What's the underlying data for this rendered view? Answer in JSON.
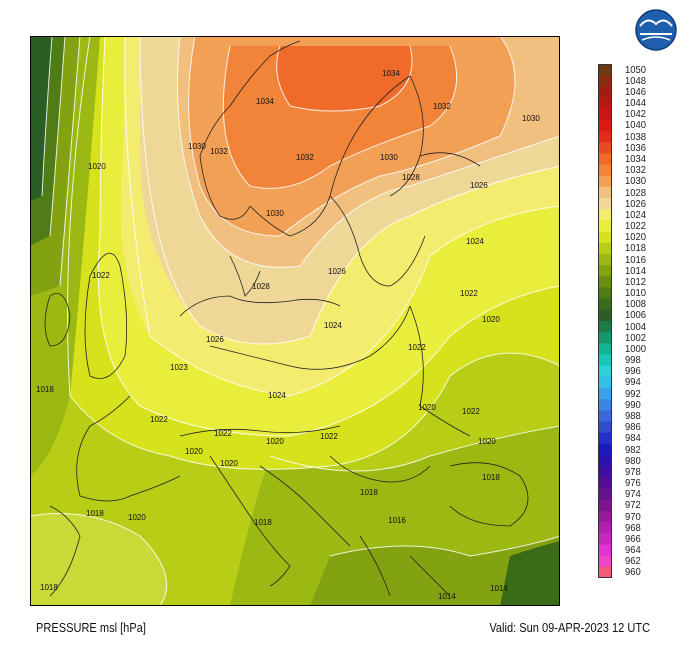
{
  "title": "PRESSURE msl [hPa]",
  "valid": "Valid: Sun 09-APR-2023 12 UTC",
  "legend": {
    "unit": "hPa",
    "levels": [
      "1050",
      "1048",
      "1046",
      "1044",
      "1042",
      "1040",
      "1038",
      "1036",
      "1034",
      "1032",
      "1030",
      "1028",
      "1026",
      "1024",
      "1022",
      "1020",
      "1018",
      "1016",
      "1014",
      "1012",
      "1010",
      "1008",
      "1006",
      "1004",
      "1002",
      "1000",
      "998",
      "996",
      "994",
      "992",
      "990",
      "988",
      "986",
      "984",
      "982",
      "980",
      "978",
      "976",
      "974",
      "972",
      "970",
      "968",
      "966",
      "964",
      "962",
      "960"
    ],
    "colors": [
      "#6b3a12",
      "#8a2b10",
      "#a01e10",
      "#b81810",
      "#cc1412",
      "#dd1a15",
      "#e52a1c",
      "#ea4a22",
      "#f06a2a",
      "#f2843a",
      "#f3a057",
      "#f1bf7e",
      "#efd897",
      "#f3ec6e",
      "#e9ee3d",
      "#d5e21c",
      "#b8cd16",
      "#9cb812",
      "#83a212",
      "#6a8d14",
      "#4f7c17",
      "#3a6b19",
      "#2a5e25",
      "#1f7a49",
      "#17966d",
      "#12b591",
      "#18c7b7",
      "#2bd1d8",
      "#35bfe6",
      "#3aa3e8",
      "#3a86e2",
      "#3a68d6",
      "#2f4ccc",
      "#2230c8",
      "#1a1ac0",
      "#2a12b0",
      "#3e0fa0",
      "#520f95",
      "#67118c",
      "#7e1490",
      "#961a9c",
      "#b01fae",
      "#c828c0",
      "#de35d0",
      "#ef45c8",
      "#f45a7a"
    ]
  },
  "isobars": [
    {
      "label": "1034"
    },
    {
      "label": "1034"
    },
    {
      "label": "1032"
    },
    {
      "label": "1032"
    },
    {
      "label": "1032"
    },
    {
      "label": "1030"
    },
    {
      "label": "1030"
    },
    {
      "label": "1030"
    },
    {
      "label": "1030"
    },
    {
      "label": "1028"
    },
    {
      "label": "1028"
    },
    {
      "label": "1026"
    },
    {
      "label": "1026"
    },
    {
      "label": "1026"
    },
    {
      "label": "1024"
    },
    {
      "label": "1024"
    },
    {
      "label": "1024"
    },
    {
      "label": "1023"
    },
    {
      "label": "1022"
    },
    {
      "label": "1022"
    },
    {
      "label": "1022"
    },
    {
      "label": "1022"
    },
    {
      "label": "1022"
    },
    {
      "label": "1022"
    },
    {
      "label": "1022"
    },
    {
      "label": "1020"
    },
    {
      "label": "1020"
    },
    {
      "label": "1020"
    },
    {
      "label": "1020"
    },
    {
      "label": "1020"
    },
    {
      "label": "1020"
    },
    {
      "label": "1020"
    },
    {
      "label": "1020"
    },
    {
      "label": "1018"
    },
    {
      "label": "1018"
    },
    {
      "label": "1018"
    },
    {
      "label": "1018"
    },
    {
      "label": "1018"
    },
    {
      "label": "1018"
    },
    {
      "label": "1016"
    },
    {
      "label": "1014"
    },
    {
      "label": "1014"
    }
  ]
}
